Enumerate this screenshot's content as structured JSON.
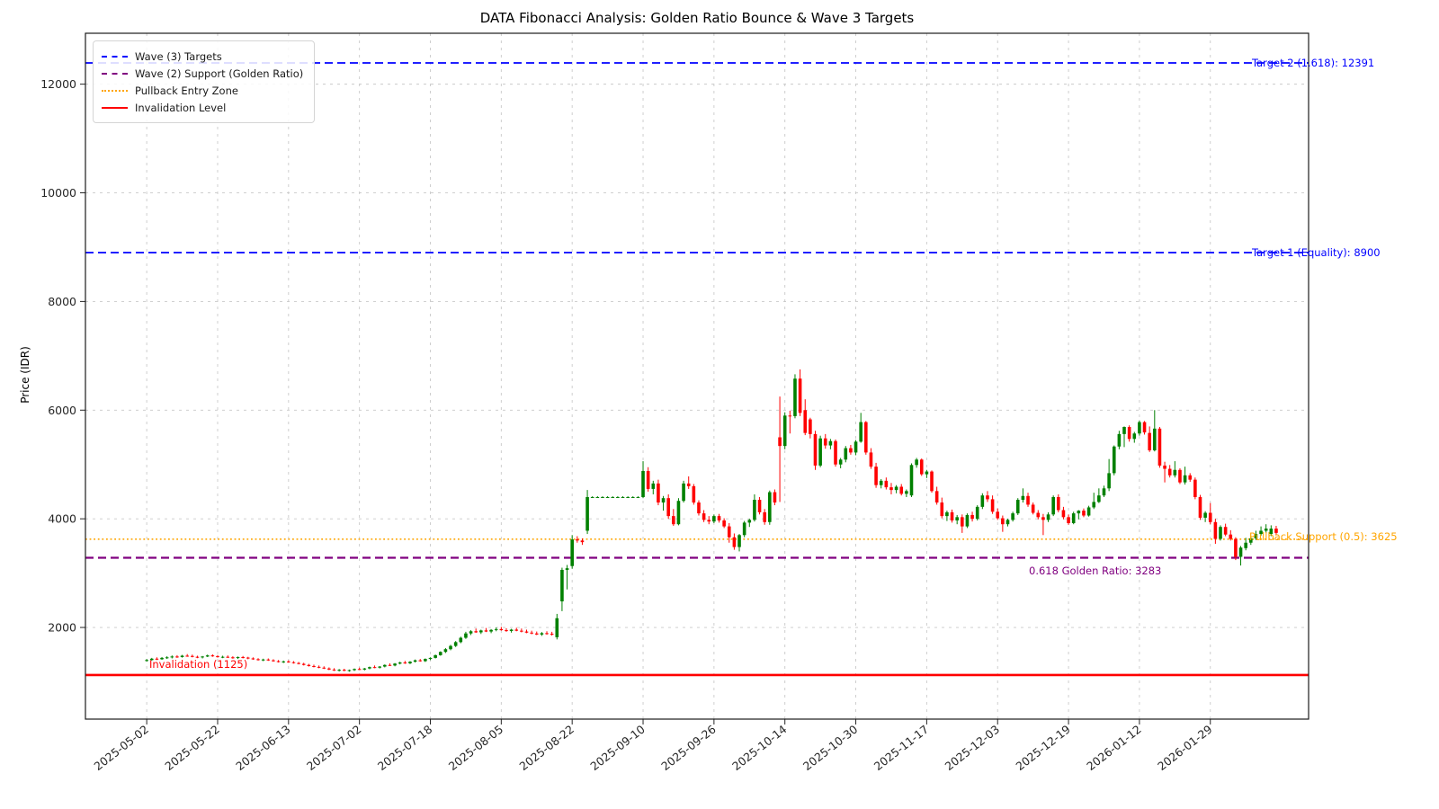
{
  "figure": {
    "title": "DATA Fibonacci Analysis: Golden Ratio Bounce & Wave 3 Targets",
    "ylabel": "Price (IDR)"
  },
  "legend": {
    "position": "upper left",
    "items": [
      {
        "label": "Wave (3) Targets",
        "color": "#0000ff",
        "style": "dashed"
      },
      {
        "label": "Wave (2) Support (Golden Ratio)",
        "color": "#800080",
        "style": "dashed"
      },
      {
        "label": "Pullback Entry Zone",
        "color": "#ffa500",
        "style": "dotted"
      },
      {
        "label": "Invalidation Level",
        "color": "#ff0000",
        "style": "solid"
      }
    ]
  },
  "annotations": {
    "target_2": "Target 2 (1.618): 12391",
    "target_1": "Target 1 (Equality): 8900",
    "pullback": "Pullback Support (0.5): 3625",
    "golden_ratio": "0.618 Golden Ratio: 3283",
    "invalidation": "Invalidation (1125)"
  },
  "chart_data": {
    "type": "candlestick",
    "title": "DATA Fibonacci Analysis: Golden Ratio Bounce & Wave 3 Targets",
    "xlabel": "",
    "ylabel": "Price (IDR)",
    "grid": true,
    "legend_position": "upper left",
    "up_color": "#008000",
    "down_color": "#ff0000",
    "ylim": [
      313,
      12937
    ],
    "xlim": [
      -12.1,
      229.4
    ],
    "y_ticks": [
      2000,
      4000,
      6000,
      8000,
      10000,
      12000
    ],
    "x_ticks": [
      {
        "i": 0,
        "label": "2025-05-02"
      },
      {
        "i": 14,
        "label": "2025-05-22"
      },
      {
        "i": 28,
        "label": "2025-06-13"
      },
      {
        "i": 42,
        "label": "2025-07-02"
      },
      {
        "i": 56,
        "label": "2025-07-18"
      },
      {
        "i": 70,
        "label": "2025-08-05"
      },
      {
        "i": 84,
        "label": "2025-08-22"
      },
      {
        "i": 98,
        "label": "2025-09-10"
      },
      {
        "i": 112,
        "label": "2025-09-26"
      },
      {
        "i": 126,
        "label": "2025-10-14"
      },
      {
        "i": 140,
        "label": "2025-10-30"
      },
      {
        "i": 154,
        "label": "2025-11-17"
      },
      {
        "i": 168,
        "label": "2025-12-03"
      },
      {
        "i": 182,
        "label": "2025-12-19"
      },
      {
        "i": 196,
        "label": "2026-01-12"
      },
      {
        "i": 210,
        "label": "2026-01-29"
      }
    ],
    "hlines": [
      {
        "name": "target_2",
        "value": 12391,
        "color": "#0000ff",
        "style": "dashed",
        "width": 1.8
      },
      {
        "name": "target_1",
        "value": 8900,
        "color": "#0000ff",
        "style": "dashed",
        "width": 1.8
      },
      {
        "name": "pullback",
        "value": 3625,
        "color": "#ffa500",
        "style": "dotted",
        "width": 1.6
      },
      {
        "name": "golden_ratio",
        "value": 3283,
        "color": "#800080",
        "style": "dashed",
        "width": 2.2
      },
      {
        "name": "invalidation",
        "value": 1125,
        "color": "#ff0000",
        "style": "solid",
        "width": 2.6
      }
    ],
    "candles_ohlc": [
      [
        1390,
        1420,
        1370,
        1400
      ],
      [
        1400,
        1440,
        1390,
        1425
      ],
      [
        1425,
        1450,
        1400,
        1415
      ],
      [
        1415,
        1455,
        1405,
        1440
      ],
      [
        1440,
        1470,
        1420,
        1450
      ],
      [
        1450,
        1485,
        1430,
        1465
      ],
      [
        1465,
        1490,
        1440,
        1455
      ],
      [
        1455,
        1495,
        1445,
        1480
      ],
      [
        1480,
        1510,
        1460,
        1475
      ],
      [
        1475,
        1500,
        1450,
        1460
      ],
      [
        1460,
        1480,
        1435,
        1450
      ],
      [
        1450,
        1475,
        1430,
        1465
      ],
      [
        1465,
        1500,
        1455,
        1485
      ],
      [
        1485,
        1505,
        1460,
        1470
      ],
      [
        1470,
        1490,
        1445,
        1455
      ],
      [
        1455,
        1480,
        1435,
        1460
      ],
      [
        1460,
        1485,
        1440,
        1450
      ],
      [
        1450,
        1470,
        1425,
        1440
      ],
      [
        1440,
        1465,
        1420,
        1455
      ],
      [
        1455,
        1475,
        1430,
        1445
      ],
      [
        1445,
        1460,
        1415,
        1430
      ],
      [
        1430,
        1450,
        1405,
        1415
      ],
      [
        1415,
        1435,
        1390,
        1400
      ],
      [
        1400,
        1425,
        1380,
        1410
      ],
      [
        1410,
        1430,
        1385,
        1395
      ],
      [
        1395,
        1415,
        1370,
        1380
      ],
      [
        1380,
        1400,
        1355,
        1365
      ],
      [
        1365,
        1390,
        1345,
        1375
      ],
      [
        1375,
        1395,
        1350,
        1360
      ],
      [
        1360,
        1380,
        1335,
        1345
      ],
      [
        1345,
        1365,
        1320,
        1330
      ],
      [
        1330,
        1350,
        1300,
        1310
      ],
      [
        1310,
        1330,
        1280,
        1290
      ],
      [
        1290,
        1315,
        1265,
        1275
      ],
      [
        1275,
        1300,
        1250,
        1260
      ],
      [
        1260,
        1285,
        1235,
        1245
      ],
      [
        1245,
        1265,
        1215,
        1225
      ],
      [
        1225,
        1250,
        1200,
        1210
      ],
      [
        1210,
        1235,
        1190,
        1220
      ],
      [
        1220,
        1240,
        1195,
        1205
      ],
      [
        1205,
        1225,
        1185,
        1215
      ],
      [
        1215,
        1245,
        1200,
        1235
      ],
      [
        1235,
        1260,
        1215,
        1225
      ],
      [
        1225,
        1255,
        1210,
        1245
      ],
      [
        1245,
        1280,
        1230,
        1270
      ],
      [
        1270,
        1300,
        1250,
        1260
      ],
      [
        1260,
        1290,
        1245,
        1280
      ],
      [
        1280,
        1320,
        1265,
        1310
      ],
      [
        1310,
        1340,
        1290,
        1300
      ],
      [
        1300,
        1345,
        1285,
        1335
      ],
      [
        1335,
        1370,
        1320,
        1355
      ],
      [
        1355,
        1385,
        1330,
        1340
      ],
      [
        1340,
        1380,
        1325,
        1370
      ],
      [
        1370,
        1410,
        1355,
        1395
      ],
      [
        1395,
        1420,
        1370,
        1380
      ],
      [
        1380,
        1430,
        1365,
        1420
      ],
      [
        1420,
        1450,
        1400,
        1440
      ],
      [
        1440,
        1500,
        1430,
        1490
      ],
      [
        1490,
        1560,
        1480,
        1550
      ],
      [
        1550,
        1620,
        1530,
        1600
      ],
      [
        1600,
        1680,
        1580,
        1660
      ],
      [
        1660,
        1750,
        1640,
        1730
      ],
      [
        1730,
        1830,
        1710,
        1810
      ],
      [
        1810,
        1920,
        1790,
        1890
      ],
      [
        1890,
        1950,
        1860,
        1930
      ],
      [
        1930,
        1980,
        1900,
        1910
      ],
      [
        1910,
        1960,
        1880,
        1945
      ],
      [
        1945,
        1990,
        1915,
        1925
      ],
      [
        1925,
        1970,
        1895,
        1955
      ],
      [
        1955,
        2000,
        1930,
        1970
      ],
      [
        1970,
        2010,
        1940,
        1950
      ],
      [
        1950,
        1985,
        1920,
        1935
      ],
      [
        1935,
        1975,
        1905,
        1960
      ],
      [
        1960,
        1995,
        1930,
        1940
      ],
      [
        1940,
        1980,
        1910,
        1925
      ],
      [
        1925,
        1960,
        1895,
        1905
      ],
      [
        1905,
        1940,
        1875,
        1890
      ],
      [
        1890,
        1925,
        1860,
        1870
      ],
      [
        1870,
        1915,
        1845,
        1895
      ],
      [
        1895,
        1930,
        1865,
        1885
      ],
      [
        1885,
        1920,
        1850,
        1870
      ],
      [
        1820,
        2250,
        1780,
        2170
      ],
      [
        2480,
        3100,
        2300,
        3060
      ],
      [
        3060,
        3150,
        2700,
        3090
      ],
      [
        3130,
        3700,
        3080,
        3620
      ],
      [
        3620,
        3680,
        3560,
        3600
      ],
      [
        3600,
        3640,
        3520,
        3570
      ],
      [
        3780,
        4530,
        3720,
        4400
      ],
      [
        4400,
        4415,
        4385,
        4400
      ],
      [
        4400,
        4415,
        4385,
        4400
      ],
      [
        4400,
        4415,
        4385,
        4400
      ],
      [
        4400,
        4415,
        4385,
        4400
      ],
      [
        4400,
        4415,
        4385,
        4400
      ],
      [
        4400,
        4415,
        4385,
        4400
      ],
      [
        4400,
        4415,
        4385,
        4400
      ],
      [
        4400,
        4415,
        4385,
        4400
      ],
      [
        4400,
        4415,
        4385,
        4400
      ],
      [
        4400,
        4415,
        4385,
        4400
      ],
      [
        4400,
        5060,
        4380,
        4880
      ],
      [
        4880,
        4950,
        4500,
        4550
      ],
      [
        4550,
        4700,
        4450,
        4650
      ],
      [
        4650,
        4720,
        4250,
        4300
      ],
      [
        4300,
        4420,
        4150,
        4380
      ],
      [
        4380,
        4450,
        4000,
        4050
      ],
      [
        4050,
        4180,
        3870,
        3900
      ],
      [
        3900,
        4380,
        3880,
        4330
      ],
      [
        4330,
        4700,
        4300,
        4650
      ],
      [
        4650,
        4780,
        4550,
        4600
      ],
      [
        4600,
        4640,
        4260,
        4300
      ],
      [
        4300,
        4340,
        4060,
        4100
      ],
      [
        4100,
        4160,
        3940,
        3980
      ],
      [
        3980,
        4050,
        3900,
        3950
      ],
      [
        3950,
        4080,
        3920,
        4050
      ],
      [
        4050,
        4090,
        3930,
        3970
      ],
      [
        3970,
        4010,
        3830,
        3860
      ],
      [
        3860,
        3920,
        3560,
        3660
      ],
      [
        3660,
        3730,
        3430,
        3480
      ],
      [
        3480,
        3720,
        3400,
        3700
      ],
      [
        3700,
        3960,
        3660,
        3930
      ],
      [
        3930,
        4000,
        3850,
        3980
      ],
      [
        3980,
        4450,
        3950,
        4350
      ],
      [
        4350,
        4400,
        4080,
        4120
      ],
      [
        4120,
        4180,
        3890,
        3940
      ],
      [
        3940,
        4520,
        3890,
        4490
      ],
      [
        4490,
        4540,
        4250,
        4300
      ],
      [
        5500,
        6250,
        4310,
        5340
      ],
      [
        5340,
        5960,
        5280,
        5900
      ],
      [
        5900,
        5990,
        5570,
        5890
      ],
      [
        5890,
        6660,
        5850,
        6580
      ],
      [
        6580,
        6750,
        5890,
        5950
      ],
      [
        6000,
        6200,
        5540,
        5580
      ],
      [
        5830,
        5860,
        5480,
        5560
      ],
      [
        5560,
        5620,
        4900,
        4980
      ],
      [
        4980,
        5530,
        4950,
        5480
      ],
      [
        5480,
        5560,
        5290,
        5350
      ],
      [
        5350,
        5470,
        5280,
        5430
      ],
      [
        5430,
        5460,
        4960,
        5000
      ],
      [
        5000,
        5120,
        4930,
        5090
      ],
      [
        5090,
        5340,
        5040,
        5300
      ],
      [
        5300,
        5360,
        5180,
        5220
      ],
      [
        5220,
        5450,
        5170,
        5420
      ],
      [
        5420,
        5950,
        5400,
        5780
      ],
      [
        5780,
        5800,
        5180,
        5220
      ],
      [
        5220,
        5300,
        4920,
        4960
      ],
      [
        4960,
        5030,
        4570,
        4620
      ],
      [
        4620,
        4730,
        4560,
        4700
      ],
      [
        4700,
        4760,
        4540,
        4580
      ],
      [
        4580,
        4660,
        4450,
        4530
      ],
      [
        4530,
        4620,
        4470,
        4590
      ],
      [
        4590,
        4640,
        4430,
        4460
      ],
      [
        4460,
        4540,
        4400,
        4510
      ],
      [
        4430,
        5020,
        4400,
        4990
      ],
      [
        4990,
        5120,
        4940,
        5090
      ],
      [
        5090,
        5110,
        4790,
        4820
      ],
      [
        4820,
        4900,
        4750,
        4870
      ],
      [
        4870,
        4890,
        4480,
        4510
      ],
      [
        4510,
        4590,
        4260,
        4300
      ],
      [
        4300,
        4390,
        4010,
        4050
      ],
      [
        4050,
        4150,
        3960,
        4120
      ],
      [
        4120,
        4170,
        3930,
        3970
      ],
      [
        3970,
        4070,
        3900,
        4030
      ],
      [
        4030,
        4080,
        3740,
        3860
      ],
      [
        3860,
        4100,
        3830,
        4070
      ],
      [
        4070,
        4130,
        3950,
        4000
      ],
      [
        4000,
        4250,
        3970,
        4220
      ],
      [
        4220,
        4470,
        4180,
        4430
      ],
      [
        4430,
        4510,
        4310,
        4360
      ],
      [
        4360,
        4430,
        4090,
        4130
      ],
      [
        4130,
        4190,
        3980,
        4010
      ],
      [
        4010,
        4060,
        3760,
        3900
      ],
      [
        3900,
        4000,
        3860,
        3980
      ],
      [
        3980,
        4130,
        3950,
        4100
      ],
      [
        4100,
        4380,
        4070,
        4350
      ],
      [
        4350,
        4560,
        4300,
        4420
      ],
      [
        4420,
        4480,
        4220,
        4260
      ],
      [
        4260,
        4300,
        4080,
        4110
      ],
      [
        4110,
        4160,
        3990,
        4030
      ],
      [
        4030,
        4090,
        3700,
        3980
      ],
      [
        3980,
        4120,
        3940,
        4080
      ],
      [
        4080,
        4430,
        4050,
        4400
      ],
      [
        4400,
        4450,
        4120,
        4160
      ],
      [
        4160,
        4220,
        3990,
        4030
      ],
      [
        4030,
        4080,
        3890,
        3920
      ],
      [
        3920,
        4130,
        3900,
        4100
      ],
      [
        4100,
        4160,
        3990,
        4150
      ],
      [
        4150,
        4190,
        4030,
        4060
      ],
      [
        4060,
        4240,
        4040,
        4210
      ],
      [
        4210,
        4480,
        4180,
        4310
      ],
      [
        4310,
        4560,
        4290,
        4430
      ],
      [
        4430,
        4610,
        4400,
        4560
      ],
      [
        4560,
        5100,
        4510,
        4840
      ],
      [
        4840,
        5350,
        4800,
        5330
      ],
      [
        5330,
        5620,
        5280,
        5560
      ],
      [
        5560,
        5700,
        5320,
        5690
      ],
      [
        5690,
        5720,
        5420,
        5470
      ],
      [
        5470,
        5600,
        5400,
        5570
      ],
      [
        5570,
        5810,
        5530,
        5780
      ],
      [
        5780,
        5800,
        5550,
        5590
      ],
      [
        5580,
        5700,
        5230,
        5260
      ],
      [
        5260,
        6000,
        5240,
        5660
      ],
      [
        5660,
        5690,
        4940,
        4980
      ],
      [
        4980,
        5050,
        4670,
        4920
      ],
      [
        4920,
        4990,
        4760,
        4800
      ],
      [
        4800,
        5060,
        4760,
        4900
      ],
      [
        4900,
        4930,
        4640,
        4670
      ],
      [
        4670,
        4960,
        4630,
        4800
      ],
      [
        4800,
        4840,
        4680,
        4720
      ],
      [
        4720,
        4760,
        4360,
        4400
      ],
      [
        4400,
        4440,
        3980,
        4020
      ],
      [
        4020,
        4140,
        3940,
        4110
      ],
      [
        4110,
        4290,
        3900,
        3940
      ],
      [
        3940,
        4000,
        3540,
        3630
      ],
      [
        3630,
        3880,
        3600,
        3850
      ],
      [
        3850,
        3910,
        3680,
        3710
      ],
      [
        3710,
        3790,
        3600,
        3630
      ],
      [
        3630,
        3660,
        3240,
        3300
      ],
      [
        3300,
        3500,
        3140,
        3470
      ],
      [
        3460,
        3650,
        3420,
        3560
      ],
      [
        3560,
        3680,
        3520,
        3640
      ],
      [
        3640,
        3780,
        3610,
        3720
      ],
      [
        3720,
        3860,
        3690,
        3780
      ],
      [
        3780,
        3900,
        3740,
        3820
      ],
      [
        3720,
        3880,
        3680,
        3820
      ],
      [
        3820,
        3870,
        3700,
        3740
      ]
    ]
  }
}
